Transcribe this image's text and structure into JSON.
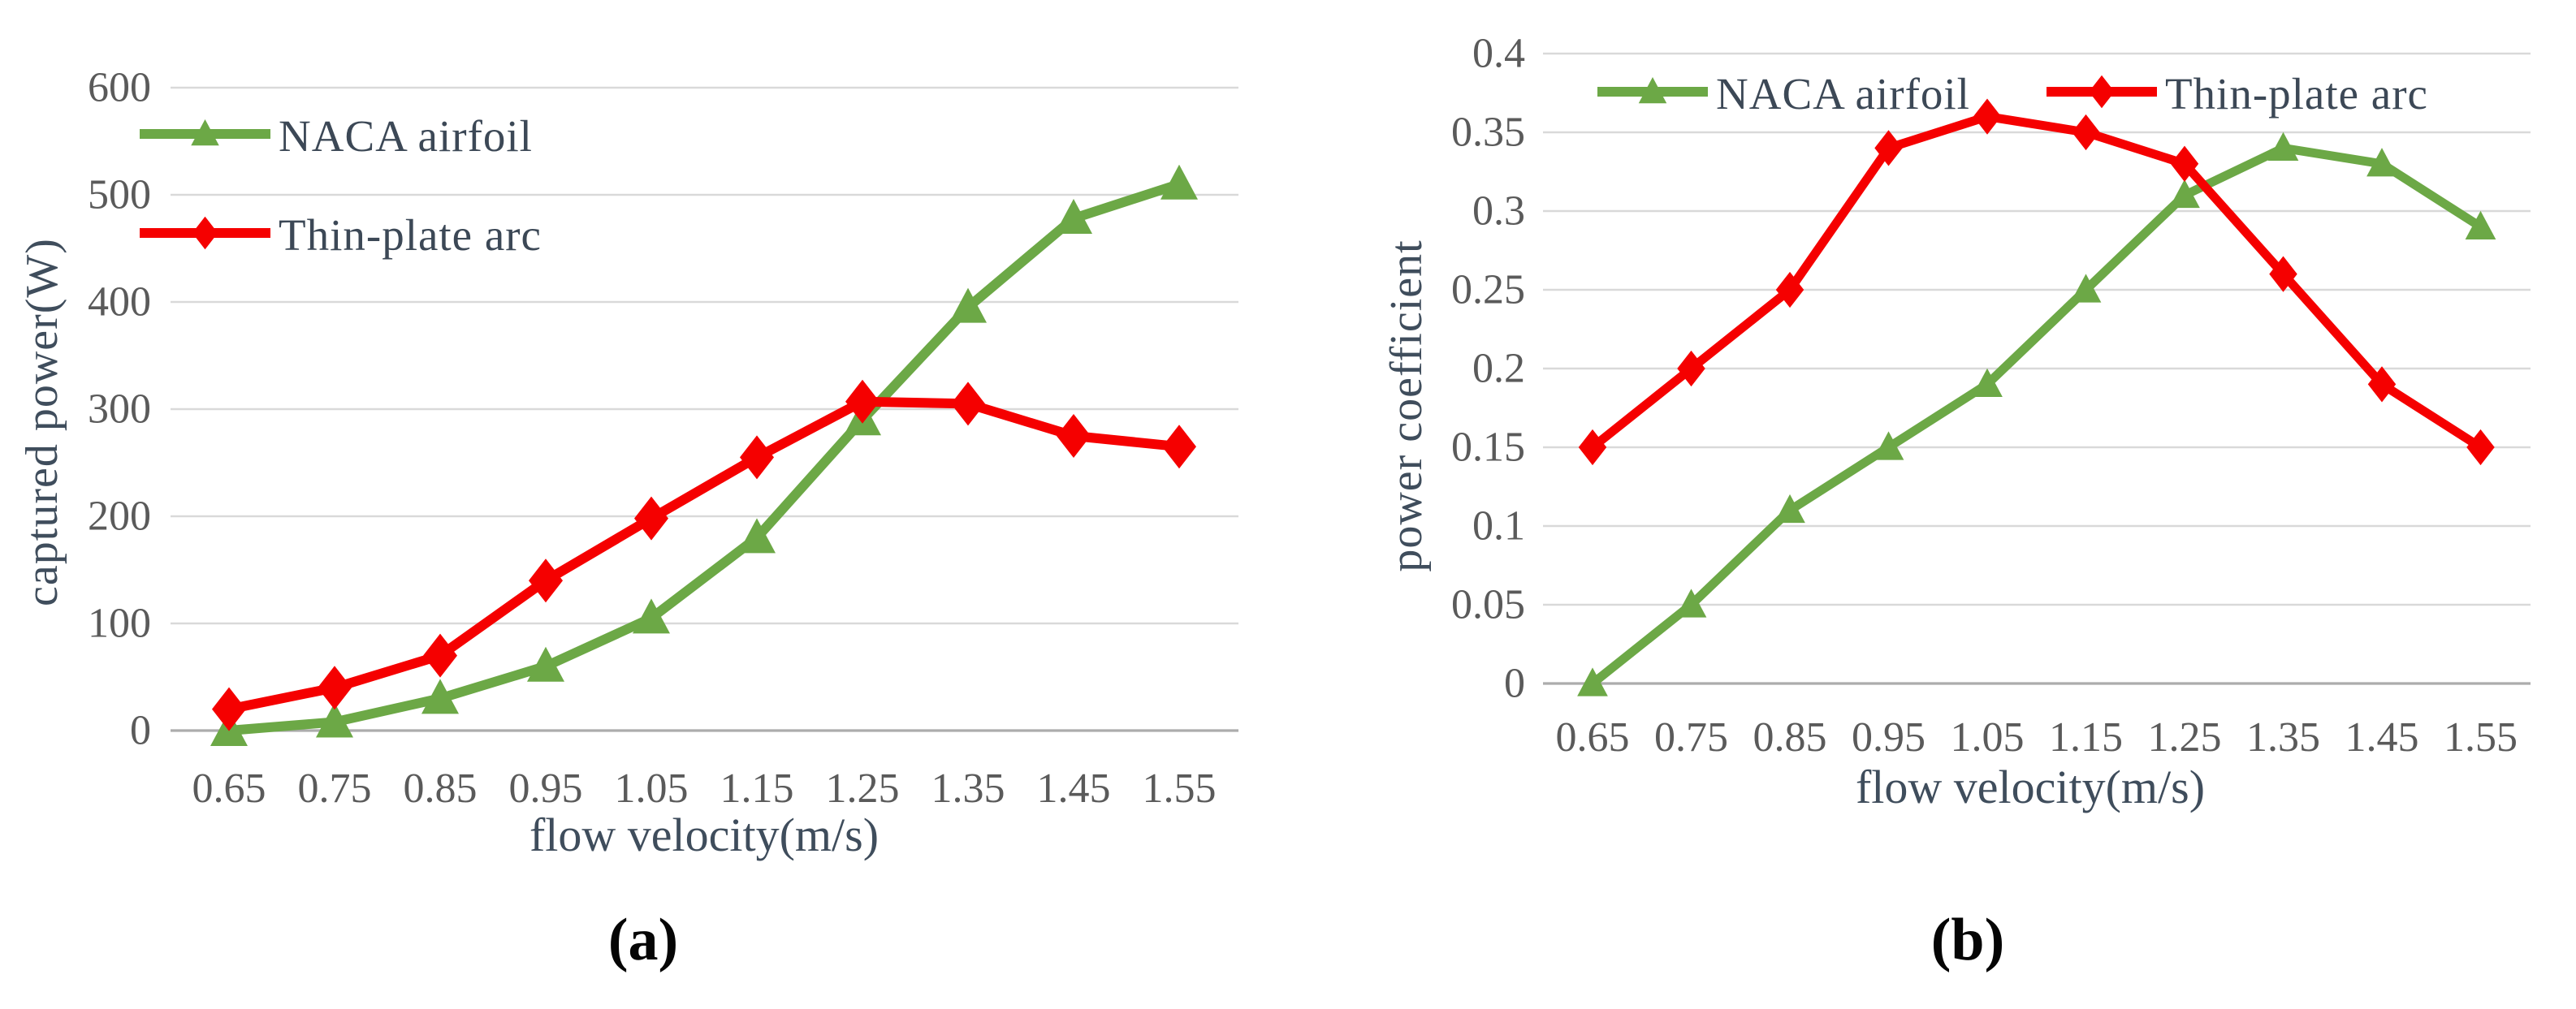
{
  "figure": {
    "captions": {
      "a": "(a)",
      "b": "(b)"
    }
  },
  "theme": {
    "background": "#FFFFFF",
    "grid_color": "#D9D9D9",
    "axis_line_color": "#ACACAC",
    "tick_text_color": "#5A5A5A",
    "axis_title_color": "#3F4D5C",
    "legend_text_color": "#3C4856",
    "caption_color": "#050505",
    "naca_green": "#6CA846",
    "thin_plate_red": "#F50000"
  },
  "chart_data": [
    {
      "panel": "a",
      "type": "line",
      "title": "",
      "xlabel": "flow velocity(m/s)",
      "ylabel": "captured power(W)",
      "categories": [
        "0.65",
        "0.75",
        "0.85",
        "0.95",
        "1.05",
        "1.15",
        "1.25",
        "1.35",
        "1.45",
        "1.55"
      ],
      "ylim": [
        0,
        600
      ],
      "ytick_values": [
        0,
        100,
        200,
        300,
        400,
        500,
        600
      ],
      "ytick_labels": [
        "0",
        "100",
        "200",
        "300",
        "400",
        "500",
        "600"
      ],
      "grid": true,
      "legend_position": "upper-left inside plot, stacked vertically",
      "series": [
        {
          "name": "NACA airfoil",
          "color": "#6CA846",
          "marker": "triangle",
          "values": [
            0,
            8,
            30,
            60,
            105,
            180,
            290,
            395,
            478,
            510
          ]
        },
        {
          "name": "Thin-plate arc",
          "color": "#F50000",
          "marker": "diamond",
          "values": [
            20,
            40,
            70,
            140,
            198,
            255,
            307,
            305,
            275,
            265
          ]
        }
      ]
    },
    {
      "panel": "b",
      "type": "line",
      "title": "",
      "xlabel": "flow velocity(m/s)",
      "ylabel": "power coefficient",
      "categories": [
        "0.65",
        "0.75",
        "0.85",
        "0.95",
        "1.05",
        "1.15",
        "1.25",
        "1.35",
        "1.45",
        "1.55"
      ],
      "ylim": [
        0,
        0.4
      ],
      "ytick_values": [
        0,
        0.05,
        0.1,
        0.15,
        0.2,
        0.25,
        0.3,
        0.35,
        0.4
      ],
      "ytick_labels": [
        "0",
        "0.05",
        "0.1",
        "0.15",
        "0.2",
        "0.25",
        "0.3",
        "0.35",
        "0.4"
      ],
      "grid": true,
      "legend_position": "top inside plot, single row",
      "series": [
        {
          "name": "NACA airfoil",
          "color": "#6CA846",
          "marker": "triangle",
          "values": [
            0,
            0.05,
            0.11,
            0.15,
            0.19,
            0.25,
            0.31,
            0.34,
            0.33,
            0.29
          ]
        },
        {
          "name": "Thin-plate arc",
          "color": "#F50000",
          "marker": "diamond",
          "values": [
            0.15,
            0.2,
            0.25,
            0.34,
            0.36,
            0.35,
            0.33,
            0.26,
            0.19,
            0.15
          ]
        }
      ]
    }
  ]
}
